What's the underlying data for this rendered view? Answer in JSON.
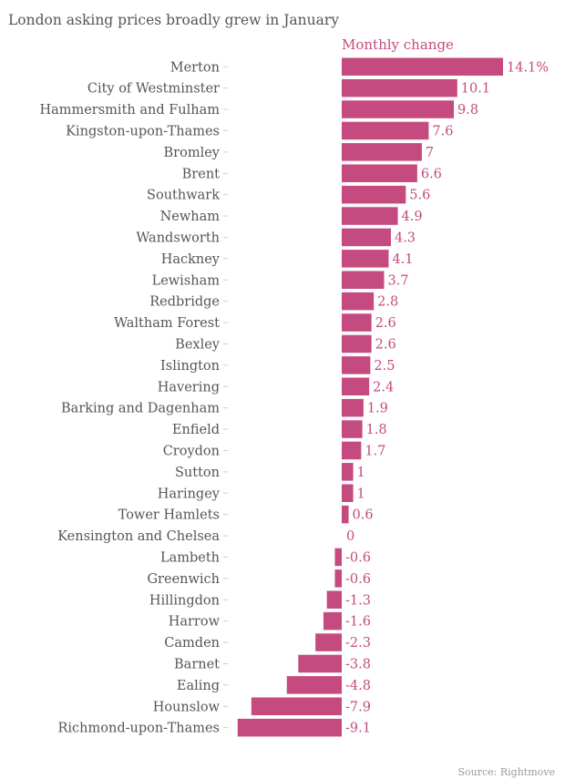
{
  "chart_data": {
    "type": "bar",
    "orientation": "horizontal",
    "title": "London asking prices broadly grew in January",
    "series_name": "Monthly change",
    "source": "Source: Rightmove",
    "color": "#c44a7f",
    "xlim": [
      -9.1,
      14.1
    ],
    "categories": [
      "Merton",
      "City of Westminster",
      "Hammersmith and Fulham",
      "Kingston-upon-Thames",
      "Bromley",
      "Brent",
      "Southwark",
      "Newham",
      "Wandsworth",
      "Hackney",
      "Lewisham",
      "Redbridge",
      "Waltham Forest",
      "Bexley",
      "Islington",
      "Havering",
      "Barking and Dagenham",
      "Enfield",
      "Croydon",
      "Sutton",
      "Haringey",
      "Tower Hamlets",
      "Kensington and Chelsea",
      "Lambeth",
      "Greenwich",
      "Hillingdon",
      "Harrow",
      "Camden",
      "Barnet",
      "Ealing",
      "Hounslow",
      "Richmond-upon-Thames"
    ],
    "values": [
      14.1,
      10.1,
      9.8,
      7.6,
      7,
      6.6,
      5.6,
      4.9,
      4.3,
      4.1,
      3.7,
      2.8,
      2.6,
      2.6,
      2.5,
      2.4,
      1.9,
      1.8,
      1.7,
      1,
      1,
      0.6,
      0,
      -0.6,
      -0.6,
      -1.3,
      -1.6,
      -2.3,
      -3.8,
      -4.8,
      -7.9,
      -9.1
    ],
    "value_labels": [
      "14.1%",
      "10.1",
      "9.8",
      "7.6",
      "7",
      "6.6",
      "5.6",
      "4.9",
      "4.3",
      "4.1",
      "3.7",
      "2.8",
      "2.6",
      "2.6",
      "2.5",
      "2.4",
      "1.9",
      "1.8",
      "1.7",
      "1",
      "1",
      "0.6",
      "0",
      "-0.6",
      "-0.6",
      "-1.3",
      "-1.6",
      "-2.3",
      "-3.8",
      "-4.8",
      "-7.9",
      "-9.1"
    ]
  }
}
